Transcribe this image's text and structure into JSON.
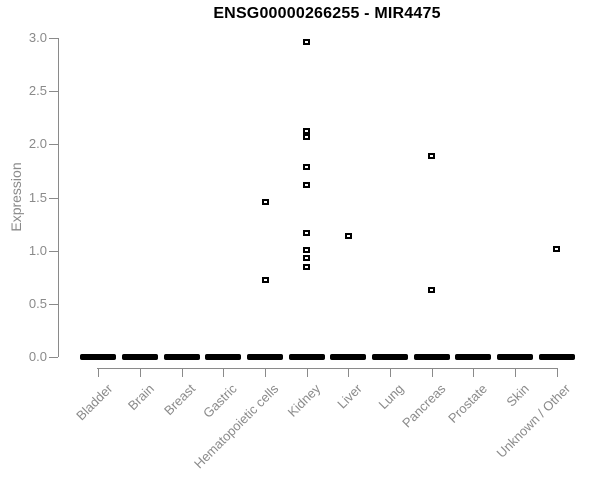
{
  "colors": {
    "axis": "#8a8a8a",
    "text": "#8a8a8a",
    "point": "#000000",
    "title": "#000000",
    "background": "#ffffff"
  },
  "chart_data": {
    "type": "scatter",
    "title": "ENSG00000266255 - MIR4475",
    "subtitle": "",
    "xlabel": "",
    "ylabel": "Expression",
    "ylim": [
      0,
      3.0
    ],
    "yticks": [
      "0.0",
      "0.5",
      "1.0",
      "1.5",
      "2.0",
      "2.5",
      "3.0"
    ],
    "grid": false,
    "legend": false,
    "marker_style": "small open black square",
    "zero_cluster_note": "every category has a dense overlapping cluster of points at expression 0, rendered as a thick black dash",
    "categories": [
      "Bladder",
      "Brain",
      "Breast",
      "Gastric",
      "Hematopoietic cells",
      "Kidney",
      "Liver",
      "Lung",
      "Pancreas",
      "Prostate",
      "Skin",
      "Unknown / Other"
    ],
    "series": [
      {
        "category": "Bladder",
        "zero_cluster": true,
        "values": []
      },
      {
        "category": "Brain",
        "zero_cluster": true,
        "values": []
      },
      {
        "category": "Breast",
        "zero_cluster": true,
        "values": []
      },
      {
        "category": "Gastric",
        "zero_cluster": true,
        "values": []
      },
      {
        "category": "Hematopoietic cells",
        "zero_cluster": true,
        "values": [
          1.46,
          0.72
        ]
      },
      {
        "category": "Kidney",
        "zero_cluster": true,
        "values": [
          2.96,
          2.13,
          2.07,
          1.79,
          1.62,
          1.17,
          1.01,
          0.93,
          0.85
        ]
      },
      {
        "category": "Liver",
        "zero_cluster": true,
        "values": [
          1.14
        ]
      },
      {
        "category": "Lung",
        "zero_cluster": true,
        "values": []
      },
      {
        "category": "Pancreas",
        "zero_cluster": true,
        "values": [
          1.89,
          0.63
        ]
      },
      {
        "category": "Prostate",
        "zero_cluster": true,
        "values": []
      },
      {
        "category": "Skin",
        "zero_cluster": true,
        "values": []
      },
      {
        "category": "Unknown / Other",
        "zero_cluster": true,
        "values": [
          1.02
        ]
      }
    ]
  }
}
